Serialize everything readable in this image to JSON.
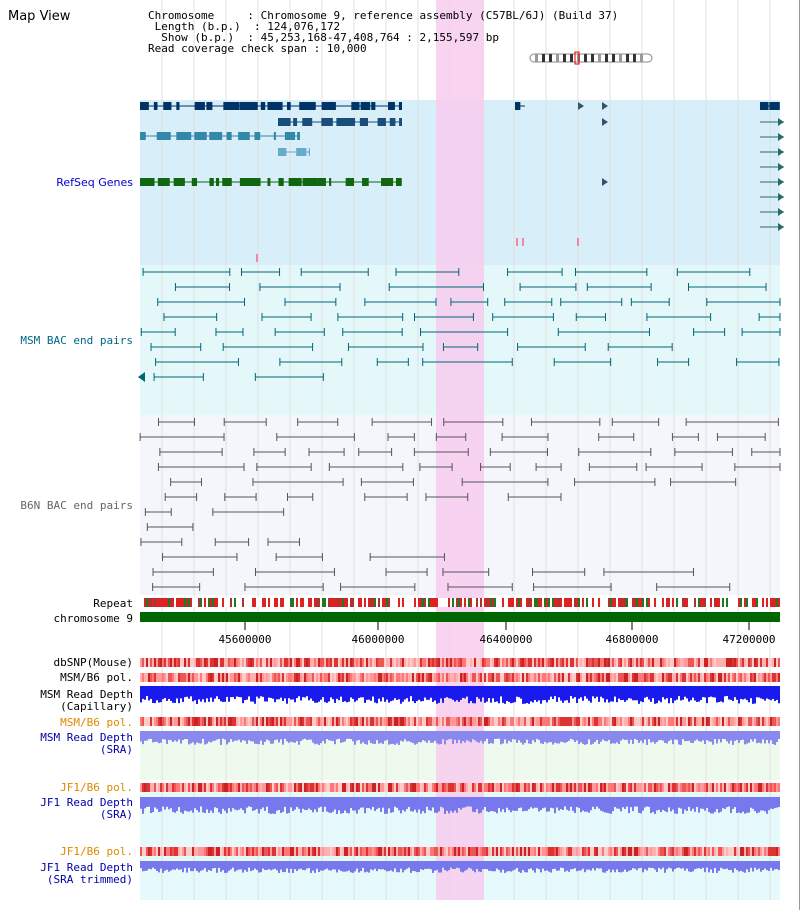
{
  "viewer": {
    "title": "Map View",
    "info": {
      "chromosome_label": "Chromosome",
      "chromosome_value": "Chromosome 9, reference assembly (C57BL/6J) (Build 37)",
      "length_label": "Length (b.p.)",
      "length_value": "124,076,172",
      "show_label": "Show (b.p.)",
      "show_value": "45,253,168-47,408,764 : 2,155,597 bp",
      "coverage_label": "Read coverage check span",
      "coverage_value": "10,000"
    },
    "tracks": {
      "refseq": "RefSeq Genes",
      "msm_bac": "MSM BAC end pairs",
      "b6n_bac": "B6N BAC end pairs",
      "repeat": "Repeat",
      "chromosome": "chromosome 9",
      "dbsnp": "dbSNP(Mouse)",
      "msm_b6_pol": "MSM/B6 pol.",
      "msm_read_depth_cap_1": "MSM Read Depth",
      "msm_read_depth_cap_2": "(Capillary)",
      "msm_b6_pol_2": "MSM/B6 pol.",
      "msm_read_depth_sra_1": "MSM Read Depth",
      "msm_read_depth_sra_2": "(SRA)",
      "jf1_b6_pol": "JF1/B6 pol.",
      "jf1_read_depth_1": "JF1 Read Depth",
      "jf1_read_depth_2": "(SRA)",
      "jf1_b6_pol_2": "JF1/B6 pol.",
      "jf1_read_depth_trim_1": "JF1 Read Depth",
      "jf1_read_depth_trim_2": "(SRA trimmed)"
    },
    "axis_ticks": [
      "45600000",
      "46000000",
      "46400000",
      "46800000",
      "47200000"
    ],
    "colors": {
      "refseq_label": "#0000cc",
      "msm_label": "#006688",
      "b6n_label": "#666666",
      "orange_label": "#dd8800",
      "blue_label": "#0000aa",
      "highlight": "#f7ccee",
      "refseq_bg": "#d8eef8",
      "msm_bg": "#e4f8fa",
      "b6n_bg": "#f4f6fb"
    }
  }
}
